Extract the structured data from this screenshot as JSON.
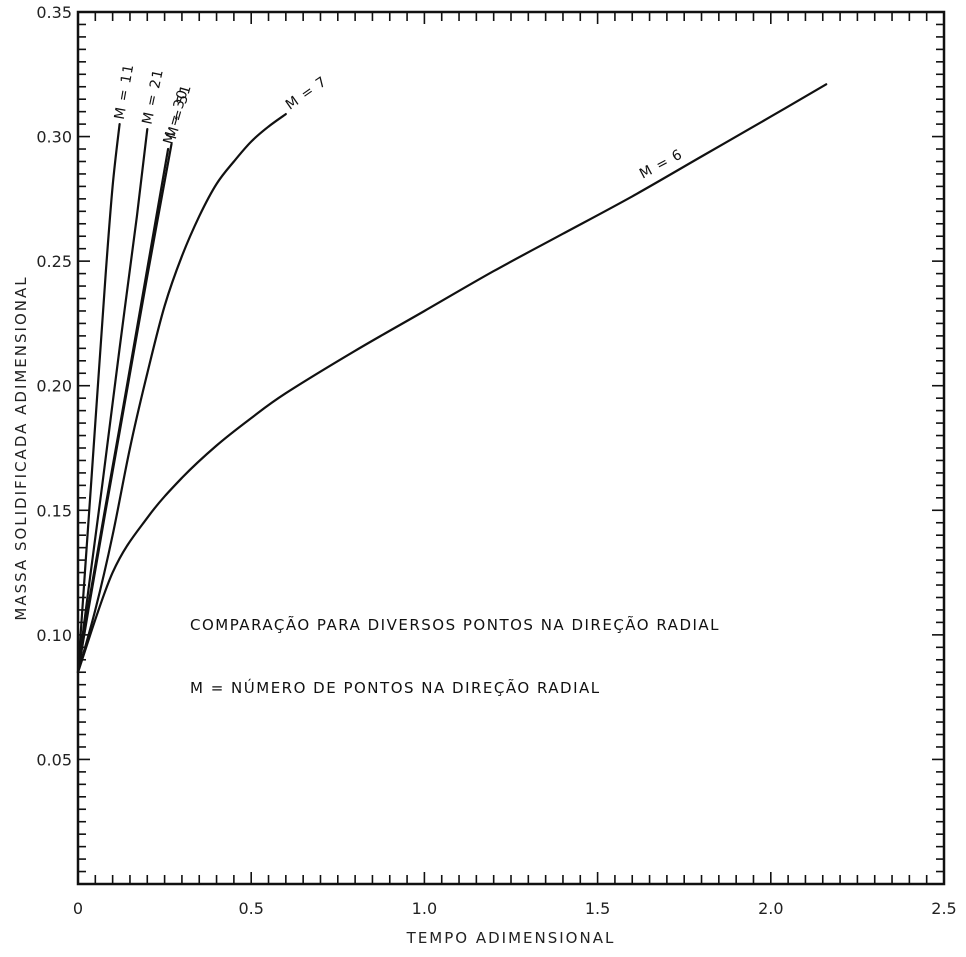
{
  "chart_data": {
    "type": "line",
    "title": "",
    "xlabel": "TEMPO ADIMENSIONAL",
    "ylabel": "MASSA SOLIDIFICADA ADIMENSIONAL",
    "xlim": [
      0,
      2.5
    ],
    "ylim": [
      0,
      0.35
    ],
    "x_tick_labels": [
      "0",
      "0.5",
      "1.0",
      "1.5",
      "2.0",
      "2.5"
    ],
    "y_tick_labels": [
      "0.05",
      "0.10",
      "0.15",
      "0.20",
      "0.25",
      "0.30",
      "0.35"
    ],
    "grid": false,
    "annotations": [
      "COMPARAÇÃO PARA DIVERSOS PONTOS NA DIREÇÃO RADIAL",
      "M = NÚMERO DE PONTOS NA DIREÇÃO RADIAL"
    ],
    "series": [
      {
        "name": "M = 6",
        "label_text": "M = 6",
        "label_angle": -28,
        "x": [
          0.0,
          0.1,
          0.2,
          0.3,
          0.4,
          0.5,
          0.6,
          0.8,
          1.0,
          1.2,
          1.4,
          1.6,
          1.8,
          2.0,
          2.16
        ],
        "y": [
          0.085,
          0.125,
          0.147,
          0.163,
          0.176,
          0.187,
          0.197,
          0.214,
          0.23,
          0.246,
          0.261,
          0.276,
          0.292,
          0.308,
          0.321
        ]
      },
      {
        "name": "M = 7",
        "label_text": "M = 7",
        "label_angle": -35,
        "x": [
          0.0,
          0.05,
          0.1,
          0.15,
          0.2,
          0.25,
          0.3,
          0.35,
          0.4,
          0.45,
          0.5,
          0.55,
          0.6
        ],
        "y": [
          0.085,
          0.11,
          0.14,
          0.175,
          0.205,
          0.232,
          0.252,
          0.268,
          0.281,
          0.29,
          0.298,
          0.304,
          0.309
        ]
      },
      {
        "name": "M = 11",
        "label_text": "M = 11",
        "label_angle": -80,
        "x": [
          0.0,
          0.02,
          0.05,
          0.08,
          0.1,
          0.12
        ],
        "y": [
          0.085,
          0.125,
          0.185,
          0.245,
          0.28,
          0.305
        ]
      },
      {
        "name": "M = 21",
        "label_text": "M = 21",
        "label_angle": -78,
        "x": [
          0.0,
          0.03,
          0.07,
          0.12,
          0.17,
          0.2
        ],
        "y": [
          0.085,
          0.118,
          0.16,
          0.215,
          0.268,
          0.303
        ]
      },
      {
        "name": "M = 30",
        "label_text": "M = 30",
        "label_angle": -74,
        "x": [
          0.0,
          0.03,
          0.08,
          0.14,
          0.2,
          0.26
        ],
        "y": [
          0.085,
          0.112,
          0.152,
          0.199,
          0.247,
          0.295
        ]
      },
      {
        "name": "M = 51",
        "label_text": "M = 51",
        "label_angle": -74,
        "x": [
          0.0,
          0.03,
          0.08,
          0.14,
          0.2,
          0.27
        ],
        "y": [
          0.085,
          0.11,
          0.15,
          0.197,
          0.244,
          0.297
        ]
      }
    ]
  }
}
